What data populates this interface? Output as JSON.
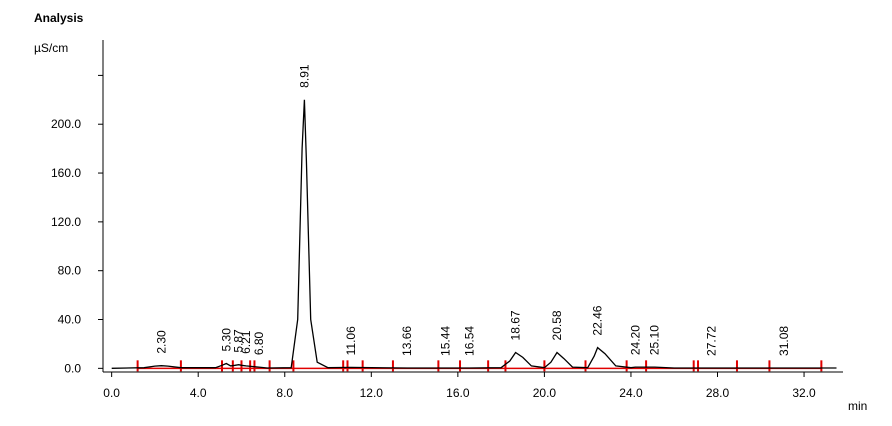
{
  "chart_data": {
    "type": "line",
    "title": "Analysis",
    "y_label": "µS/cm",
    "x_label": "min",
    "color": "#000000",
    "marker_color": "#e00000",
    "x": [
      0,
      1.5,
      2.0,
      2.3,
      2.6,
      3.2,
      4.8,
      5.1,
      5.3,
      5.5,
      5.7,
      5.87,
      6.0,
      6.21,
      6.5,
      6.8,
      7.2,
      8.3,
      8.6,
      8.8,
      8.91,
      9.0,
      9.2,
      9.5,
      10.0,
      11.06,
      13.66,
      15.44,
      16.54,
      18.0,
      18.4,
      18.67,
      19.0,
      19.4,
      20.0,
      20.3,
      20.58,
      20.9,
      21.3,
      22.0,
      22.3,
      22.46,
      22.8,
      23.3,
      24.0,
      24.2,
      25.1,
      26.0,
      27.72,
      31.08,
      33.5
    ],
    "values": [
      0,
      0.5,
      1.8,
      2.2,
      1.8,
      0.5,
      0.5,
      2.5,
      4,
      2,
      2.5,
      3,
      2.5,
      2,
      1.5,
      1,
      0.3,
      0.5,
      40,
      180,
      220,
      170,
      40,
      5,
      0.5,
      0.8,
      0.3,
      0.3,
      0.3,
      0.5,
      6,
      13,
      9,
      2,
      0.5,
      5,
      13,
      8,
      1,
      0.5,
      10,
      17,
      12,
      2,
      0.5,
      1,
      1,
      0.3,
      0.3,
      0.3,
      0.3
    ],
    "peak_times": [
      2.3,
      5.3,
      5.87,
      6.21,
      6.8,
      8.91,
      11.06,
      13.66,
      15.44,
      16.54,
      18.67,
      20.58,
      22.46,
      24.2,
      25.1,
      27.72,
      31.08
    ],
    "peak_labels": [
      "2.30",
      "5.30",
      "5.87",
      "6.21",
      "6.80",
      "8.91",
      "11.06",
      "13.66",
      "15.44",
      "16.54",
      "18.67",
      "20.58",
      "22.46",
      "24.20",
      "25.10",
      "27.72",
      "31.08"
    ],
    "peak_heights": [
      2.2,
      4,
      3,
      2,
      1,
      220,
      0.8,
      0.3,
      0.3,
      0.3,
      13,
      13,
      17,
      1,
      1,
      0.3,
      0.3
    ],
    "integration_marks": [
      1.2,
      3.2,
      5.1,
      5.6,
      6.0,
      6.4,
      6.6,
      7.3,
      8.4,
      10.7,
      10.9,
      11.6,
      13.0,
      15.1,
      16.1,
      17.4,
      18.2,
      20.0,
      21.9,
      23.8,
      24.7,
      26.9,
      27.1,
      28.9,
      30.4,
      32.8
    ],
    "xlim": [
      -0.4,
      33.8
    ],
    "ylim": [
      -3,
      269
    ],
    "xticks": [
      {
        "value": 0,
        "label": "0.0"
      },
      {
        "value": 4,
        "label": "4.0"
      },
      {
        "value": 8,
        "label": "8.0"
      },
      {
        "value": 12,
        "label": "12.0"
      },
      {
        "value": 16,
        "label": "16.0"
      },
      {
        "value": 20,
        "label": "20.0"
      },
      {
        "value": 24,
        "label": "24.0"
      },
      {
        "value": 28,
        "label": "28.0"
      },
      {
        "value": 32,
        "label": "32.0"
      }
    ],
    "yticks": [
      {
        "value": 0,
        "label": "0.0"
      },
      {
        "value": 40,
        "label": "40.0"
      },
      {
        "value": 80,
        "label": "80.0"
      },
      {
        "value": 120,
        "label": "120.0"
      },
      {
        "value": 160,
        "label": "160.0"
      },
      {
        "value": 200,
        "label": "200.0"
      }
    ],
    "yminorticks": [
      240
    ]
  }
}
